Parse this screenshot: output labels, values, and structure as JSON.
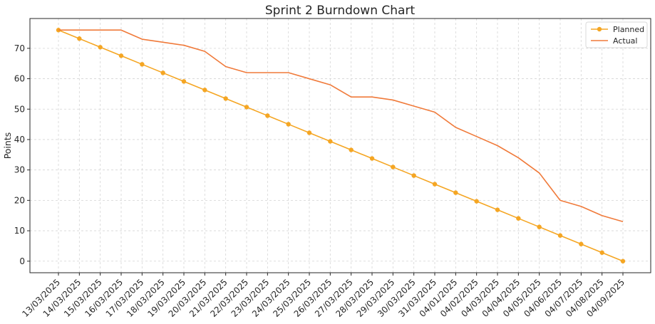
{
  "chart_data": {
    "type": "line",
    "title": "Sprint 2 Burndown Chart",
    "xlabel": "",
    "ylabel": "Points",
    "categories": [
      "13/03/2025",
      "14/03/2025",
      "15/03/2025",
      "16/03/2025",
      "17/03/2025",
      "18/03/2025",
      "19/03/2025",
      "20/03/2025",
      "21/03/2025",
      "22/03/2025",
      "23/03/2025",
      "24/03/2025",
      "25/03/2025",
      "26/03/2025",
      "27/03/2025",
      "28/03/2025",
      "29/03/2025",
      "30/03/2025",
      "31/03/2025",
      "04/01/2025",
      "04/02/2025",
      "04/03/2025",
      "04/04/2025",
      "04/05/2025",
      "04/06/2025",
      "04/07/2025",
      "04/08/2025",
      "04/09/2025"
    ],
    "ylim": [
      -3.8,
      79.8
    ],
    "yticks": [
      0,
      10,
      20,
      30,
      40,
      50,
      60,
      70
    ],
    "grid": true,
    "legend_position": "top-right",
    "series": [
      {
        "name": "Planned",
        "color": "#F5A623",
        "marker": "circle",
        "values": [
          76,
          73.19,
          70.37,
          67.56,
          64.74,
          61.93,
          59.11,
          56.3,
          53.48,
          50.67,
          47.85,
          45.04,
          42.22,
          39.41,
          36.59,
          33.78,
          30.96,
          28.15,
          25.33,
          22.52,
          19.7,
          16.89,
          14.07,
          11.26,
          8.44,
          5.63,
          2.81,
          0
        ]
      },
      {
        "name": "Actual",
        "color": "#F07A3A",
        "marker": "none",
        "values": [
          76,
          76,
          76,
          76,
          73,
          72,
          71,
          69,
          64,
          62,
          62,
          62,
          60,
          58,
          54,
          54,
          53,
          51,
          49,
          44,
          41,
          38,
          34,
          29,
          20,
          18,
          15,
          13
        ]
      }
    ]
  }
}
